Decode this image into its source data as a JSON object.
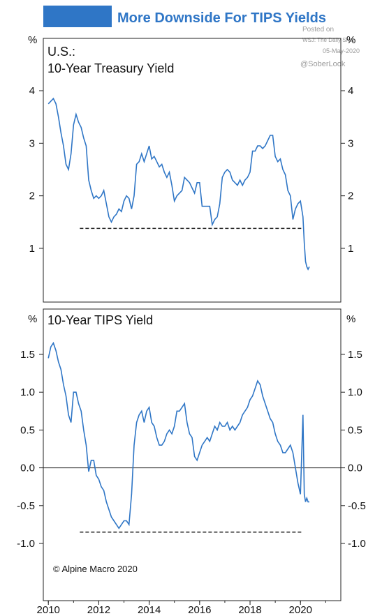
{
  "header": {
    "title": "More Downside For TIPS Yields",
    "accent_color": "#2f76c6"
  },
  "watermark": {
    "posted_on": "Posted on",
    "source": "WSJ: The Daily Shot",
    "date": "05-May-2020",
    "handle": "@SoberLook"
  },
  "copyright": "© Alpine Macro 2020",
  "chart_data": [
    {
      "type": "line",
      "title": "U.S.:",
      "subtitle": "10-Year Treasury Yield",
      "unit": "%",
      "line_color": "#2f76c6",
      "ylim": [
        0,
        5
      ],
      "yticks": [
        "1",
        "2",
        "3",
        "4"
      ],
      "reference_line": {
        "y": 1.38,
        "x_start": 2011.25,
        "x_end": 2020.05,
        "style": "dashed"
      },
      "series": [
        {
          "x": [
            2010.0,
            2010.1,
            2010.2,
            2010.3,
            2010.4,
            2010.5,
            2010.6,
            2010.7,
            2010.8,
            2010.9,
            2011.0,
            2011.1,
            2011.2,
            2011.3,
            2011.4,
            2011.5,
            2011.6,
            2011.7,
            2011.8,
            2011.9,
            2012.0,
            2012.1,
            2012.2,
            2012.3,
            2012.4,
            2012.5,
            2012.6,
            2012.7,
            2012.8,
            2012.9,
            2013.0,
            2013.1,
            2013.2,
            2013.3,
            2013.4,
            2013.5,
            2013.6,
            2013.7,
            2013.8,
            2013.9,
            2014.0,
            2014.1,
            2014.2,
            2014.3,
            2014.4,
            2014.5,
            2014.6,
            2014.7,
            2014.8,
            2014.9,
            2015.0,
            2015.1,
            2015.2,
            2015.3,
            2015.4,
            2015.5,
            2015.6,
            2015.7,
            2015.8,
            2015.9,
            2016.0,
            2016.1,
            2016.2,
            2016.3,
            2016.4,
            2016.5,
            2016.6,
            2016.7,
            2016.8,
            2016.9,
            2017.0,
            2017.1,
            2017.2,
            2017.3,
            2017.4,
            2017.5,
            2017.6,
            2017.7,
            2017.8,
            2017.9,
            2018.0,
            2018.1,
            2018.2,
            2018.3,
            2018.4,
            2018.5,
            2018.6,
            2018.7,
            2018.8,
            2018.9,
            2019.0,
            2019.1,
            2019.2,
            2019.3,
            2019.4,
            2019.5,
            2019.6,
            2019.7,
            2019.8,
            2019.9,
            2020.0,
            2020.1,
            2020.15,
            2020.2,
            2020.25,
            2020.3,
            2020.35
          ],
          "y": [
            3.75,
            3.8,
            3.85,
            3.75,
            3.5,
            3.2,
            2.95,
            2.6,
            2.5,
            2.8,
            3.35,
            3.55,
            3.4,
            3.3,
            3.1,
            2.95,
            2.3,
            2.1,
            1.95,
            2.0,
            1.95,
            2.0,
            2.1,
            1.85,
            1.6,
            1.5,
            1.6,
            1.65,
            1.75,
            1.7,
            1.9,
            2.0,
            1.95,
            1.75,
            2.0,
            2.6,
            2.65,
            2.8,
            2.65,
            2.8,
            2.95,
            2.7,
            2.75,
            2.65,
            2.55,
            2.6,
            2.45,
            2.35,
            2.45,
            2.2,
            1.9,
            2.0,
            2.05,
            2.1,
            2.35,
            2.3,
            2.25,
            2.15,
            2.05,
            2.25,
            2.25,
            1.8,
            1.8,
            1.8,
            1.8,
            1.45,
            1.55,
            1.6,
            1.85,
            2.35,
            2.45,
            2.5,
            2.45,
            2.3,
            2.25,
            2.2,
            2.3,
            2.2,
            2.3,
            2.35,
            2.45,
            2.85,
            2.85,
            2.95,
            2.95,
            2.9,
            2.95,
            3.05,
            3.15,
            3.15,
            2.75,
            2.65,
            2.7,
            2.5,
            2.4,
            2.1,
            2.0,
            1.55,
            1.75,
            1.85,
            1.9,
            1.6,
            1.1,
            0.75,
            0.65,
            0.6,
            0.65
          ]
        }
      ]
    },
    {
      "type": "line",
      "title": "10-Year TIPS Yield",
      "unit": "%",
      "line_color": "#2f76c6",
      "ylim": [
        -1.5,
        1.8
      ],
      "yticks": [
        "1.5",
        "1.0",
        "0.5",
        "0.0",
        "-0.5",
        "-1.0"
      ],
      "zero_line": true,
      "reference_line": {
        "y": -0.85,
        "x_start": 2011.25,
        "x_end": 2020.05,
        "style": "dashed"
      },
      "series": [
        {
          "x": [
            2010.0,
            2010.1,
            2010.2,
            2010.3,
            2010.4,
            2010.5,
            2010.6,
            2010.7,
            2010.8,
            2010.9,
            2011.0,
            2011.1,
            2011.2,
            2011.3,
            2011.4,
            2011.5,
            2011.6,
            2011.7,
            2011.8,
            2011.9,
            2012.0,
            2012.1,
            2012.2,
            2012.3,
            2012.4,
            2012.5,
            2012.6,
            2012.7,
            2012.8,
            2012.9,
            2013.0,
            2013.1,
            2013.2,
            2013.3,
            2013.4,
            2013.5,
            2013.6,
            2013.7,
            2013.8,
            2013.9,
            2014.0,
            2014.1,
            2014.2,
            2014.3,
            2014.4,
            2014.5,
            2014.6,
            2014.7,
            2014.8,
            2014.9,
            2015.0,
            2015.1,
            2015.2,
            2015.3,
            2015.4,
            2015.5,
            2015.6,
            2015.7,
            2015.8,
            2015.9,
            2016.0,
            2016.1,
            2016.2,
            2016.3,
            2016.4,
            2016.5,
            2016.6,
            2016.7,
            2016.8,
            2016.9,
            2017.0,
            2017.1,
            2017.2,
            2017.3,
            2017.4,
            2017.5,
            2017.6,
            2017.7,
            2017.8,
            2017.9,
            2018.0,
            2018.1,
            2018.2,
            2018.3,
            2018.4,
            2018.5,
            2018.6,
            2018.7,
            2018.8,
            2018.9,
            2019.0,
            2019.1,
            2019.2,
            2019.3,
            2019.4,
            2019.5,
            2019.6,
            2019.7,
            2019.8,
            2019.9,
            2020.0,
            2020.1,
            2020.15,
            2020.2,
            2020.25,
            2020.3,
            2020.35
          ],
          "y": [
            1.45,
            1.6,
            1.65,
            1.55,
            1.4,
            1.3,
            1.1,
            0.95,
            0.7,
            0.6,
            1.0,
            1.0,
            0.85,
            0.75,
            0.5,
            0.3,
            -0.05,
            0.1,
            0.1,
            -0.1,
            -0.15,
            -0.25,
            -0.3,
            -0.45,
            -0.55,
            -0.65,
            -0.7,
            -0.75,
            -0.8,
            -0.75,
            -0.7,
            -0.7,
            -0.75,
            -0.35,
            0.3,
            0.6,
            0.7,
            0.75,
            0.6,
            0.75,
            0.8,
            0.6,
            0.55,
            0.4,
            0.3,
            0.3,
            0.35,
            0.45,
            0.5,
            0.45,
            0.55,
            0.75,
            0.75,
            0.8,
            0.85,
            0.6,
            0.45,
            0.4,
            0.15,
            0.1,
            0.2,
            0.3,
            0.35,
            0.4,
            0.35,
            0.45,
            0.55,
            0.5,
            0.6,
            0.55,
            0.55,
            0.6,
            0.5,
            0.55,
            0.5,
            0.55,
            0.6,
            0.7,
            0.75,
            0.8,
            0.9,
            0.95,
            1.05,
            1.15,
            1.1,
            0.95,
            0.85,
            0.75,
            0.65,
            0.6,
            0.45,
            0.35,
            0.3,
            0.2,
            0.2,
            0.25,
            0.3,
            0.2,
            0.0,
            -0.2,
            -0.35,
            0.7,
            -0.35,
            -0.45,
            -0.4,
            -0.45,
            -0.45
          ]
        }
      ]
    }
  ],
  "x_axis": {
    "ticks": [
      "2010",
      "2012",
      "2014",
      "2016",
      "2018",
      "2020"
    ]
  }
}
